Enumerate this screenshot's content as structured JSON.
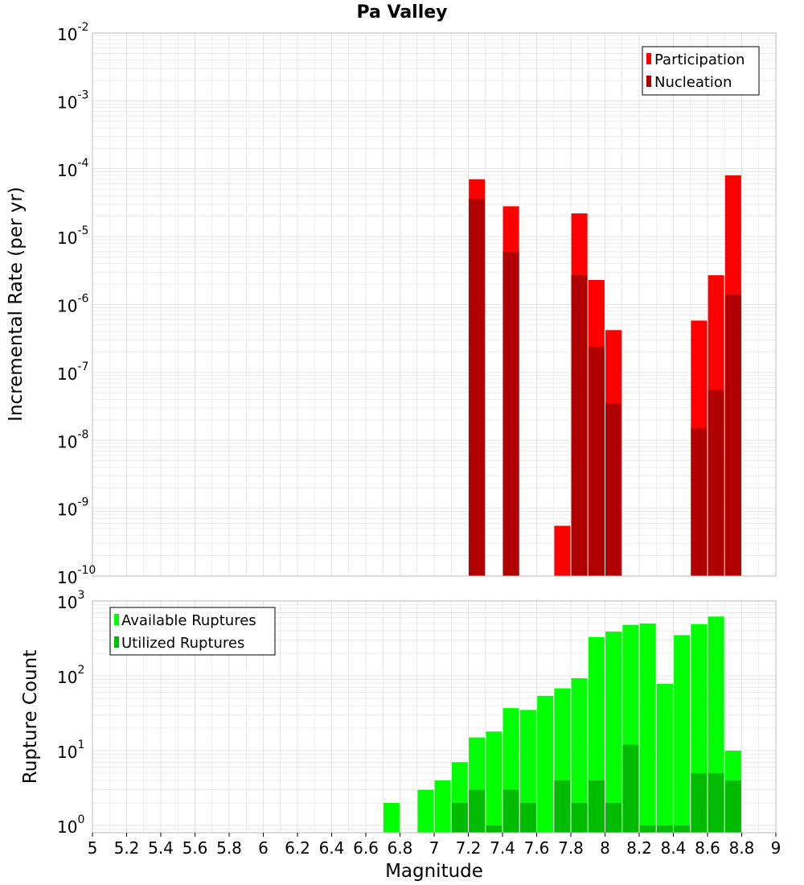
{
  "title": "Pa Valley",
  "colors": {
    "participation": "#ff0000",
    "nucleation": "#b00000",
    "available": "#00ff00",
    "utilized": "#00bb00",
    "grid": "#e4e4e4",
    "frame": "#bbbbbb"
  },
  "chart_data": [
    {
      "type": "bar",
      "y_scale": "log",
      "ylabel": "Incremental Rate (per yr)",
      "ylim": [
        1e-10,
        0.01
      ],
      "y_ticks": [
        {
          "base": "10",
          "exp": "-2",
          "value": 0.01
        },
        {
          "base": "10",
          "exp": "-3",
          "value": 0.001
        },
        {
          "base": "10",
          "exp": "-4",
          "value": 0.0001
        },
        {
          "base": "10",
          "exp": "-5",
          "value": 1e-05
        },
        {
          "base": "10",
          "exp": "-6",
          "value": 1e-06
        },
        {
          "base": "10",
          "exp": "-7",
          "value": 1e-07
        },
        {
          "base": "10",
          "exp": "-8",
          "value": 1e-08
        },
        {
          "base": "10",
          "exp": "-9",
          "value": 1e-09
        },
        {
          "base": "10",
          "exp": "-10",
          "value": 1e-10
        }
      ],
      "legend": {
        "position": "top-right",
        "entries": [
          "Participation",
          "Nucleation"
        ]
      },
      "grid": true,
      "series": [
        {
          "name": "Participation",
          "x": [
            7.25,
            7.45,
            7.75,
            7.85,
            7.95,
            8.05,
            8.55,
            8.65,
            8.75
          ],
          "values": [
            7e-05,
            2.8e-05,
            5.5e-10,
            2.2e-05,
            2.3e-06,
            4.2e-07,
            5.8e-07,
            2.7e-06,
            8e-05
          ]
        },
        {
          "name": "Nucleation",
          "x": [
            7.25,
            7.45,
            7.85,
            7.95,
            8.05,
            8.55,
            8.65,
            8.75
          ],
          "values": [
            3.6e-05,
            6e-06,
            2.7e-06,
            2.4e-07,
            3.5e-08,
            1.5e-08,
            5.5e-08,
            1.4e-06
          ]
        }
      ]
    },
    {
      "type": "bar",
      "y_scale": "log",
      "xlabel": "Magnitude",
      "ylabel": "Rupture Count",
      "xlim": [
        5,
        9
      ],
      "ylim": [
        0.8,
        1000
      ],
      "x_ticks": [
        "5",
        "5.2",
        "5.4",
        "5.6",
        "5.8",
        "6",
        "6.2",
        "6.4",
        "6.6",
        "6.8",
        "7",
        "7.2",
        "7.4",
        "7.6",
        "7.8",
        "8",
        "8.2",
        "8.4",
        "8.6",
        "8.8",
        "9"
      ],
      "y_ticks": [
        {
          "base": "10",
          "exp": "3",
          "value": 1000
        },
        {
          "base": "10",
          "exp": "2",
          "value": 100
        },
        {
          "base": "10",
          "exp": "1",
          "value": 10
        },
        {
          "base": "10",
          "exp": "0",
          "value": 1
        }
      ],
      "legend": {
        "position": "top-left",
        "entries": [
          "Available Ruptures",
          "Utilized Ruptures"
        ]
      },
      "grid": true,
      "series": [
        {
          "name": "Available Ruptures",
          "x": [
            6.75,
            6.95,
            7.05,
            7.15,
            7.25,
            7.35,
            7.45,
            7.55,
            7.65,
            7.75,
            7.85,
            7.95,
            8.05,
            8.15,
            8.25,
            8.35,
            8.45,
            8.55,
            8.65,
            8.75
          ],
          "values": [
            2,
            3,
            4,
            7,
            15,
            18,
            37,
            35,
            54,
            68,
            93,
            330,
            390,
            480,
            500,
            78,
            350,
            490,
            620,
            10
          ]
        },
        {
          "name": "Utilized Ruptures",
          "x": [
            7.15,
            7.25,
            7.35,
            7.45,
            7.55,
            7.75,
            7.85,
            7.95,
            8.05,
            8.15,
            8.25,
            8.35,
            8.45,
            8.55,
            8.65,
            8.75
          ],
          "values": [
            2,
            3,
            1,
            3,
            2,
            4,
            2,
            4,
            2,
            12,
            1,
            1,
            1,
            5,
            5,
            4
          ]
        }
      ]
    }
  ]
}
